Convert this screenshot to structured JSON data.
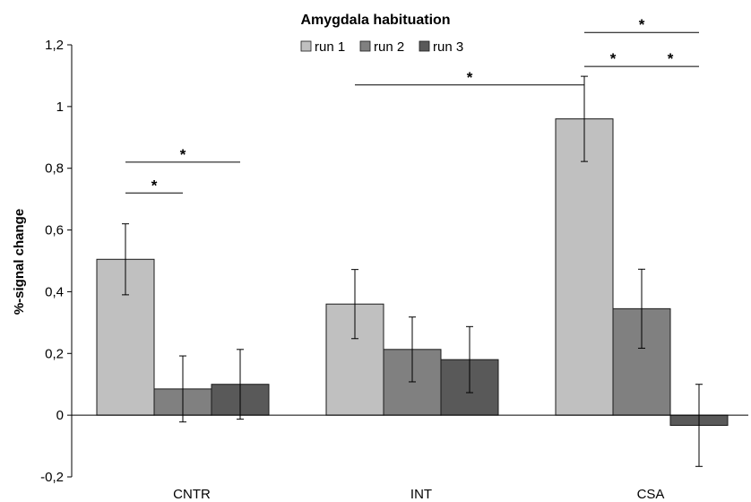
{
  "chart_data": {
    "type": "bar",
    "title": "Amygdala habituation",
    "xlabel": "",
    "ylabel": "%-signal change",
    "categories": [
      "CNTR",
      "INT",
      "CSA"
    ],
    "series": [
      {
        "name": "run 1",
        "color": "#c0c0c0",
        "values": [
          0.505,
          0.36,
          0.96
        ],
        "errors": [
          0.115,
          0.112,
          0.138
        ]
      },
      {
        "name": "run 2",
        "color": "#808080",
        "values": [
          0.085,
          0.213,
          0.345
        ],
        "errors": [
          0.107,
          0.105,
          0.128
        ]
      },
      {
        "name": "run 3",
        "color": "#595959",
        "values": [
          0.1,
          0.18,
          -0.033
        ],
        "errors": [
          0.113,
          0.107,
          0.133
        ]
      }
    ],
    "ylim": [
      -0.2,
      1.2
    ],
    "yticks": [
      -0.2,
      0,
      0.2,
      0.4,
      0.6,
      0.8,
      1,
      1.2
    ],
    "ytick_labels": [
      "-0,2",
      "0",
      "0,2",
      "0,4",
      "0,6",
      "0,8",
      "1",
      "1,2"
    ],
    "legend_position": "top-center",
    "grid": false,
    "significance": [
      {
        "label": "*",
        "from": {
          "category": 0,
          "series": 0
        },
        "to": {
          "category": 0,
          "series": 1
        },
        "y": 0.72
      },
      {
        "label": "*",
        "from": {
          "category": 0,
          "series": 0
        },
        "to": {
          "category": 0,
          "series": 2
        },
        "y": 0.82
      },
      {
        "label": "*",
        "from": {
          "category": 1,
          "series": 0
        },
        "to": {
          "category": 2,
          "series": 0
        },
        "y": 1.07
      },
      {
        "label": "*",
        "from": {
          "category": 2,
          "series": 0
        },
        "to": {
          "category": 2,
          "series": 1
        },
        "y": 1.13
      },
      {
        "label": "*",
        "from": {
          "category": 2,
          "series": 1
        },
        "to": {
          "category": 2,
          "series": 2
        },
        "y": 1.13
      },
      {
        "label": "*",
        "from": {
          "category": 2,
          "series": 0
        },
        "to": {
          "category": 2,
          "series": 2
        },
        "y": 1.24
      }
    ]
  }
}
